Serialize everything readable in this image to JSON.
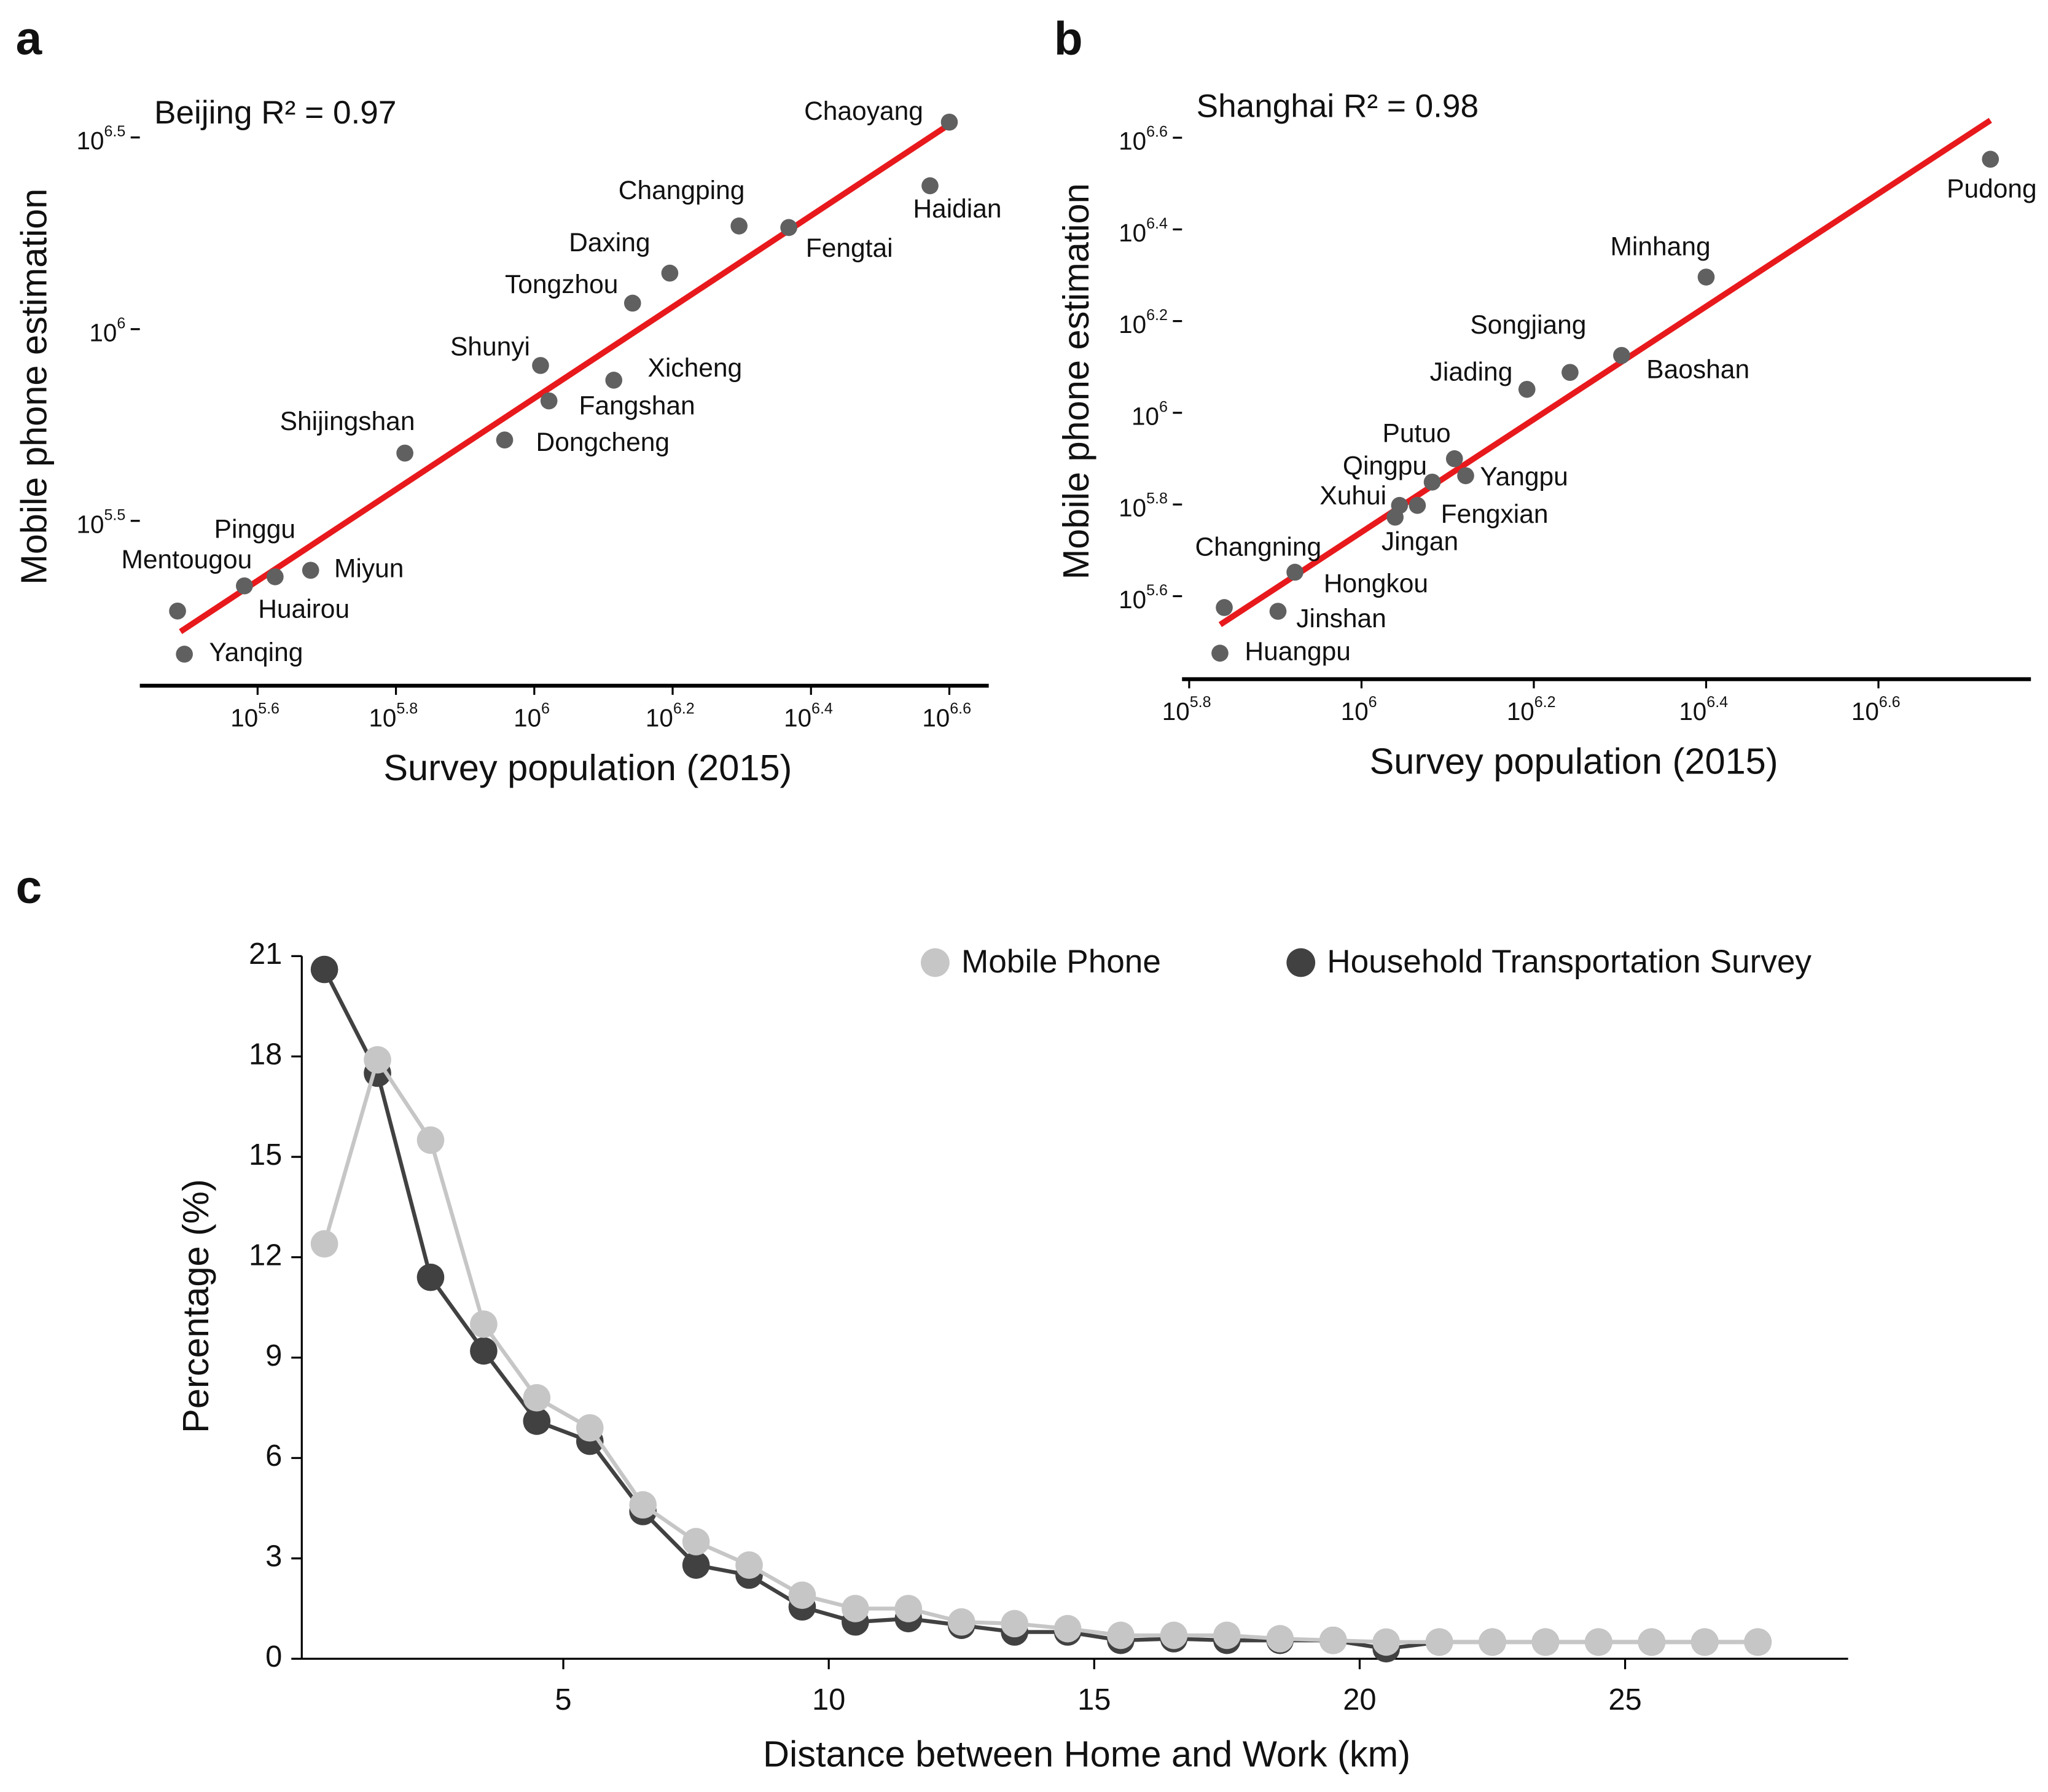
{
  "chart_data": [
    {
      "type": "scatter",
      "panel": "a",
      "annotation": "Beijing R² = 0.97",
      "xlabel": "Survey population (2015)",
      "ylabel": "Mobile phone estimation",
      "xscale": "log",
      "yscale": "log",
      "point_color": "#606060",
      "fit_color": "#e8191c",
      "labels": [
        "Chaoyang",
        "Haidian",
        "Fengtai",
        "Changping",
        "Daxing",
        "Tongzhou",
        "Xicheng",
        "Fangshan",
        "Shunyi",
        "Dongcheng",
        "Shijingshan",
        "Miyun",
        "Huairou",
        "Pinggu",
        "Mentougou",
        "Yanqing"
      ],
      "x": [
        3981000,
        3733000,
        2333000,
        1977000,
        1570000,
        1387000,
        1303000,
        1050000,
        1021000,
        906000,
        650000,
        475000,
        422000,
        381000,
        305000,
        312000
      ],
      "y": [
        3467000,
        2366000,
        1841000,
        1858000,
        1400000,
        1169000,
        736000,
        650000,
        804000,
        514000,
        475000,
        235000,
        226000,
        214000,
        184000,
        142000
      ],
      "fit": {
        "x": [
          308000,
          3981000
        ],
        "y": [
          162600,
          3420000
        ]
      },
      "xlim": [
        269000,
        4539000
      ],
      "ylim": [
        117500,
        4169000
      ],
      "xticks": [
        {
          "value": 398107,
          "label": "10^5.6"
        },
        {
          "value": 630957,
          "label": "10^5.8"
        },
        {
          "value": 1000000,
          "label": "10^6"
        },
        {
          "value": 1584893,
          "label": "10^6.2"
        },
        {
          "value": 2511886,
          "label": "10^6.4"
        },
        {
          "value": 3981072,
          "label": "10^6.6"
        }
      ],
      "yticks": [
        {
          "value": 316228,
          "label": "10^5.5"
        },
        {
          "value": 1000000,
          "label": "10^6"
        },
        {
          "value": 3162278,
          "label": "10^6.5"
        }
      ]
    },
    {
      "type": "scatter",
      "panel": "b",
      "annotation": "Shanghai R² = 0.98",
      "xlabel": "Survey population (2015)",
      "ylabel": "Mobile phone estimation",
      "xscale": "log",
      "yscale": "log",
      "point_color": "#606060",
      "fit_color": "#e8191c",
      "labels": [
        "Pudong",
        "Minhang",
        "Baoshan",
        "Songjiang",
        "Jiading",
        "Putuo",
        "Yangpu",
        "Qingpu",
        "Fengxian",
        "Xuhui",
        "Jingan",
        "Changning",
        "Hongkou",
        "Jinshan",
        "Huangpu"
      ],
      "x": [
        5370000,
        2512000,
        2004000,
        1746000,
        1556000,
        1282000,
        1321000,
        1208000,
        1161000,
        1107000,
        1094000,
        693000,
        837000,
        800000,
        685000
      ],
      "y": [
        3573000,
        1977000,
        1334000,
        1225000,
        1125000,
        794000,
        729000,
        706000,
        628000,
        628000,
        592000,
        376000,
        449000,
        369000,
        299000
      ],
      "fit": {
        "x": [
          685500,
          5370000
        ],
        "y": [
          345100,
          4345000
        ]
      },
      "xlim": [
        619000,
        5984000
      ],
      "ylim": [
        262400,
        5023000
      ],
      "xticks": [
        {
          "value": 630957,
          "label": "10^5.8"
        },
        {
          "value": 1000000,
          "label": "10^6"
        },
        {
          "value": 1584893,
          "label": "10^6.2"
        },
        {
          "value": 2511886,
          "label": "10^6.4"
        },
        {
          "value": 3981072,
          "label": "10^6.6"
        }
      ],
      "yticks": [
        {
          "value": 398107,
          "label": "10^5.6"
        },
        {
          "value": 630957,
          "label": "10^5.8"
        },
        {
          "value": 1000000,
          "label": "10^6"
        },
        {
          "value": 1584893,
          "label": "10^6.2"
        },
        {
          "value": 2511886,
          "label": "10^6.4"
        },
        {
          "value": 3981072,
          "label": "10^6.6"
        }
      ]
    },
    {
      "type": "line",
      "panel": "c",
      "xlabel": "Distance between Home and Work (km)",
      "ylabel": "Percentage (%)",
      "legend": "upper right",
      "x": [
        0.5,
        1.5,
        2.5,
        3.5,
        4.5,
        5.5,
        6.5,
        7.5,
        8.5,
        9.5,
        10.5,
        11.5,
        12.5,
        13.5,
        14.5,
        15.5,
        16.5,
        17.5,
        18.5,
        19.5,
        20.5,
        21.5,
        22.5,
        23.5,
        24.5,
        25.5,
        26.5,
        27.5
      ],
      "series": [
        {
          "name": "Household Transportation Survey",
          "color": "#414141",
          "values": [
            20.6,
            17.5,
            11.4,
            9.2,
            7.1,
            6.5,
            4.4,
            2.8,
            2.5,
            1.55,
            1.1,
            1.2,
            1.0,
            0.8,
            0.8,
            0.55,
            0.6,
            0.55,
            0.55,
            0.55,
            0.3,
            0.5,
            0.5,
            0.5,
            0.5,
            0.5,
            0.5,
            0.5
          ]
        },
        {
          "name": "Mobile Phone",
          "color": "#c6c6c6",
          "values": [
            12.4,
            17.9,
            15.5,
            10.0,
            7.8,
            6.9,
            4.6,
            3.5,
            2.8,
            1.9,
            1.5,
            1.5,
            1.1,
            1.05,
            0.9,
            0.7,
            0.7,
            0.7,
            0.6,
            0.55,
            0.5,
            0.5,
            0.5,
            0.5,
            0.5,
            0.5,
            0.5,
            0.5
          ]
        }
      ],
      "xlim": [
        0,
        29.2
      ],
      "ylim": [
        0,
        21
      ],
      "xticks": [
        5,
        10,
        15,
        20,
        25
      ],
      "yticks": [
        0,
        3,
        6,
        9,
        12,
        15,
        18,
        21
      ]
    }
  ]
}
